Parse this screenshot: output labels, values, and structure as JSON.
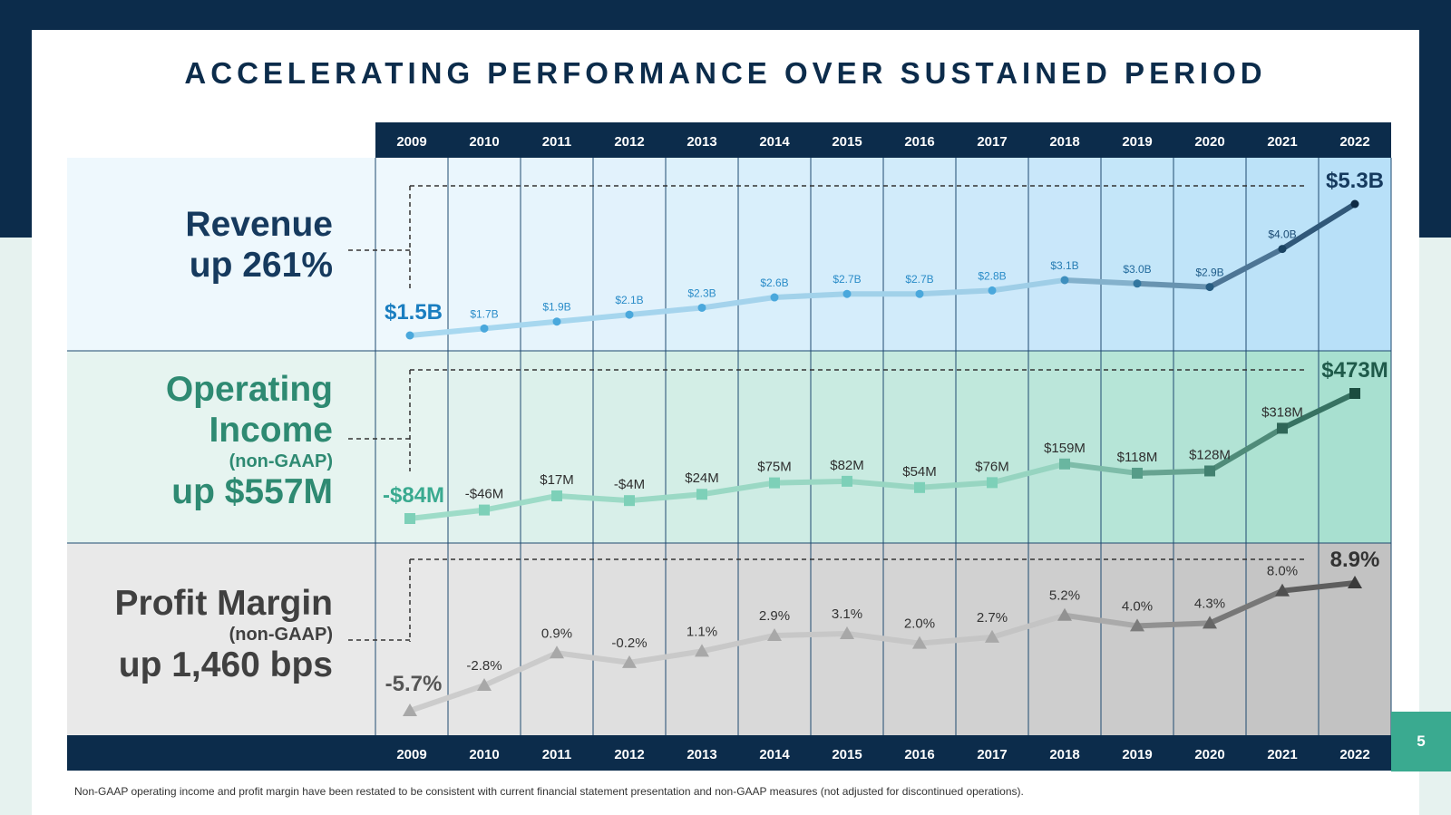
{
  "title": "ACCELERATING PERFORMANCE OVER SUSTAINED PERIOD",
  "page_number": "5",
  "footnote": "Non-GAAP operating income and profit margin have been restated to be consistent with current financial statement presentation and non-GAAP measures (not adjusted for discontinued operations).",
  "rows": {
    "revenue": {
      "line1": "Revenue",
      "line2": "up 261%"
    },
    "operating": {
      "line1": "Operating",
      "line2": "Income",
      "line3": "(non-GAAP)",
      "line4": "up $557M"
    },
    "margin": {
      "line1": "Profit Margin",
      "line2": "(non-GAAP)",
      "line3": "up 1,460 bps"
    }
  },
  "colors": {
    "navy": "#0c2c4b",
    "revenue_light": "#a8d8f0",
    "revenue_dark": "#163a5e",
    "operating_light": "#9edcc8",
    "operating_dark": "#1f5a4a",
    "margin_light": "#cccccc",
    "margin_dark": "#444444"
  },
  "chart_data": {
    "type": "line",
    "categories": [
      "2009",
      "2010",
      "2011",
      "2012",
      "2013",
      "2014",
      "2015",
      "2016",
      "2017",
      "2018",
      "2019",
      "2020",
      "2021",
      "2022"
    ],
    "series": [
      {
        "name": "Revenue",
        "unit": "$B",
        "values": [
          1.5,
          1.7,
          1.9,
          2.1,
          2.3,
          2.6,
          2.7,
          2.7,
          2.8,
          3.1,
          3.0,
          2.9,
          4.0,
          5.3
        ],
        "labels": [
          "$1.5B",
          "$1.7B",
          "$1.9B",
          "$2.1B",
          "$2.3B",
          "$2.6B",
          "$2.7B",
          "$2.7B",
          "$2.8B",
          "$3.1B",
          "$3.0B",
          "$2.9B",
          "$4.0B",
          "$5.3B"
        ],
        "ylim": [
          1.5,
          5.3
        ],
        "marker": "circle"
      },
      {
        "name": "Operating Income (non-GAAP)",
        "unit": "$M",
        "values": [
          -84,
          -46,
          17,
          -4,
          24,
          75,
          82,
          54,
          76,
          159,
          118,
          128,
          318,
          473
        ],
        "labels": [
          "-$84M",
          "-$46M",
          "$17M",
          "-$4M",
          "$24M",
          "$75M",
          "$82M",
          "$54M",
          "$76M",
          "$159M",
          "$118M",
          "$128M",
          "$318M",
          "$473M"
        ],
        "ylim": [
          -84,
          473
        ],
        "marker": "square"
      },
      {
        "name": "Profit Margin (non-GAAP)",
        "unit": "%",
        "values": [
          -5.7,
          -2.8,
          0.9,
          -0.2,
          1.1,
          2.9,
          3.1,
          2.0,
          2.7,
          5.2,
          4.0,
          4.3,
          8.0,
          8.9
        ],
        "labels": [
          "-5.7%",
          "-2.8%",
          "0.9%",
          "-0.2%",
          "1.1%",
          "2.9%",
          "3.1%",
          "2.0%",
          "2.7%",
          "5.2%",
          "4.0%",
          "4.3%",
          "8.0%",
          "8.9%"
        ],
        "ylim": [
          -5.7,
          8.9
        ],
        "marker": "triangle"
      }
    ]
  }
}
